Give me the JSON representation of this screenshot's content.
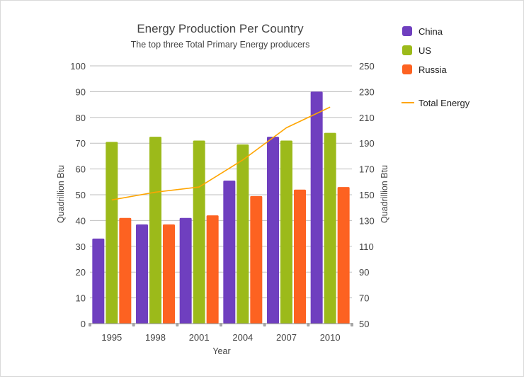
{
  "chart_data": {
    "type": "bar",
    "title": "Energy Production Per Country",
    "subtitle": "The top three Total Primary Energy producers",
    "xlabel": "Year",
    "ylabel": "Quadrillion Btu",
    "y2label": "Quadrillion Btu",
    "categories": [
      "1995",
      "1998",
      "2001",
      "2004",
      "2007",
      "2010"
    ],
    "ylim": [
      0,
      100
    ],
    "y2lim": [
      50,
      250
    ],
    "yticks": [
      "0",
      "10",
      "20",
      "30",
      "40",
      "50",
      "60",
      "70",
      "80",
      "90",
      "100"
    ],
    "y2ticks": [
      "50",
      "70",
      "90",
      "110",
      "130",
      "150",
      "170",
      "190",
      "210",
      "230",
      "250"
    ],
    "series": [
      {
        "name": "China",
        "type": "bar",
        "color": "#6f3fbf",
        "values": [
          33,
          38.5,
          41,
          55.5,
          72.5,
          90
        ]
      },
      {
        "name": "US",
        "type": "bar",
        "color": "#9cba1a",
        "values": [
          70.5,
          72.5,
          71,
          69.5,
          71,
          74
        ]
      },
      {
        "name": "Russia",
        "type": "bar",
        "color": "#fd6221",
        "values": [
          41,
          38.5,
          42,
          49.5,
          52,
          53
        ]
      },
      {
        "name": "Total Energy",
        "type": "line",
        "axis": "right",
        "color": "#ffa500",
        "values": [
          146,
          152,
          156,
          177,
          202,
          218
        ]
      }
    ]
  }
}
